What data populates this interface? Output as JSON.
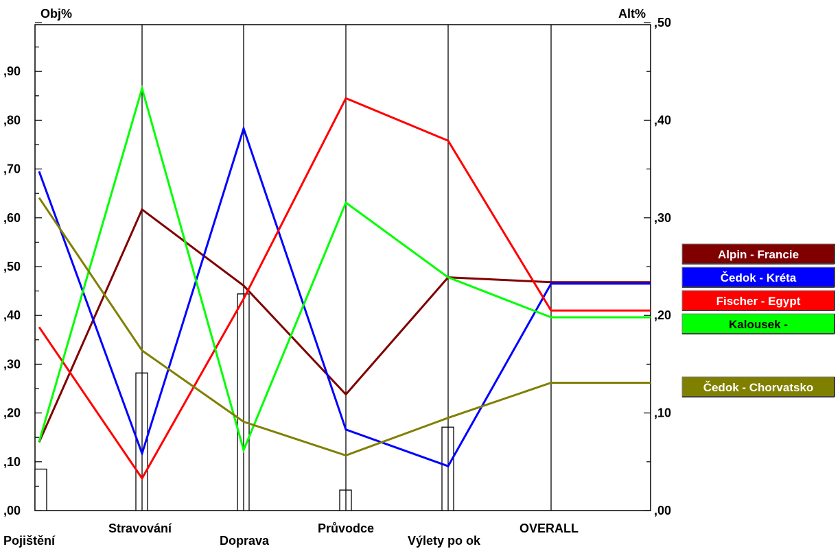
{
  "chart_data": {
    "type": "line",
    "left_axis_label": "Obj%",
    "right_axis_label": "Alt%",
    "left_ylim": [
      0,
      1
    ],
    "right_ylim": [
      0,
      0.5
    ],
    "left_ticks": [
      ",00",
      ",10",
      ",20",
      ",30",
      ",40",
      ",50",
      ",60",
      ",70",
      ",80",
      ",90"
    ],
    "right_ticks": [
      ",00",
      ",10",
      ",20",
      ",30",
      ",40",
      ",50"
    ],
    "categories": [
      "Pojištění",
      "Stravování",
      "Doprava",
      "Průvodce",
      "Výlety po ok",
      "OVERALL"
    ],
    "objective_weights": [
      0.085,
      0.282,
      0.444,
      0.042,
      0.171,
      null
    ],
    "series": [
      {
        "name": "Alpin - Francie",
        "color": "#800000",
        "values": [
          0.14,
          0.617,
          0.461,
          0.238,
          0.478,
          0.468
        ]
      },
      {
        "name": "Čedok - Kréta",
        "color": "#0000ff",
        "values": [
          0.695,
          0.117,
          0.783,
          0.166,
          0.091,
          0.465
        ]
      },
      {
        "name": "Fischer - Egypt",
        "color": "#ff0000",
        "values": [
          0.376,
          0.066,
          0.434,
          0.845,
          0.758,
          0.41
        ]
      },
      {
        "name": "Kalousek -",
        "color": "#00ff00",
        "values": [
          0.141,
          0.865,
          0.124,
          0.631,
          0.478,
          0.396
        ]
      },
      {
        "name": "Čedok - Chorvatsko",
        "color": "#808000",
        "values": [
          0.641,
          0.328,
          0.182,
          0.113,
          0.19,
          0.262
        ]
      }
    ],
    "legend_placement": "right",
    "grid": false
  }
}
